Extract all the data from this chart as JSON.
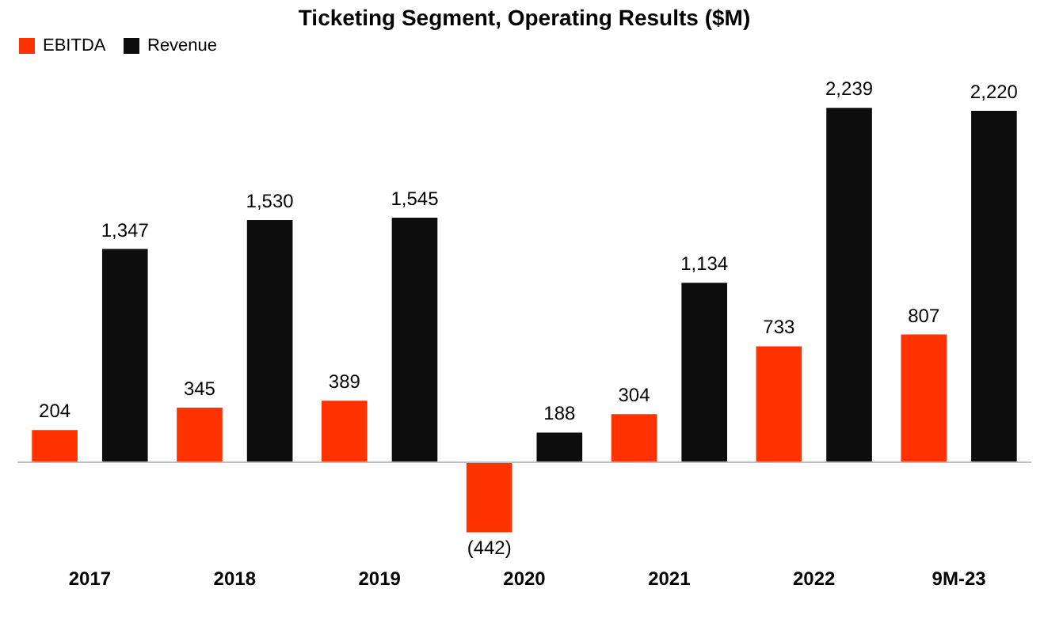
{
  "chart_data": {
    "type": "bar",
    "title": "Ticketing Segment, Operating Results ($M)",
    "categories": [
      "2017",
      "2018",
      "2019",
      "2020",
      "2021",
      "2022",
      "9M-23"
    ],
    "series": [
      {
        "name": "EBITDA",
        "color": "#ff3300",
        "values": [
          204,
          345,
          389,
          -442,
          304,
          733,
          807
        ],
        "value_labels": [
          "204",
          "345",
          "389",
          "(442)",
          "304",
          "733",
          "807"
        ]
      },
      {
        "name": "Revenue",
        "color": "#0d0d0d",
        "values": [
          1347,
          1530,
          1545,
          188,
          1134,
          2239,
          2220
        ],
        "value_labels": [
          "1,347",
          "1,530",
          "1,545",
          "188",
          "1,134",
          "2,239",
          "2,220"
        ]
      }
    ],
    "legend": "top",
    "grid": false
  }
}
